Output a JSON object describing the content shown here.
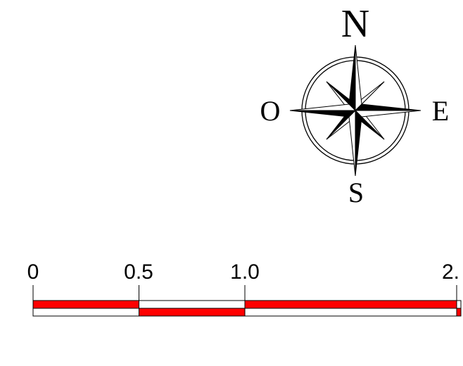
{
  "compass": {
    "north_label": "N",
    "south_label": "S",
    "east_label": "E",
    "west_label": "O"
  },
  "scale_bar": {
    "tick_labels": [
      "0",
      "0.5",
      "1.0",
      "2."
    ],
    "tick_values": [
      0,
      0.5,
      1.0,
      2.0
    ],
    "segments": [
      {
        "from": 0,
        "to": 0.5,
        "top": "red",
        "bottom": "white"
      },
      {
        "from": 0.5,
        "to": 1.0,
        "top": "white",
        "bottom": "red"
      },
      {
        "from": 1.0,
        "to": 2.0,
        "top": "red",
        "bottom": "white"
      },
      {
        "from": 2.0,
        "to": 2.02,
        "top": "white",
        "bottom": "red"
      }
    ],
    "colors": {
      "red": "#ff0000",
      "white": "#ffffff",
      "outline": "#000000"
    }
  }
}
